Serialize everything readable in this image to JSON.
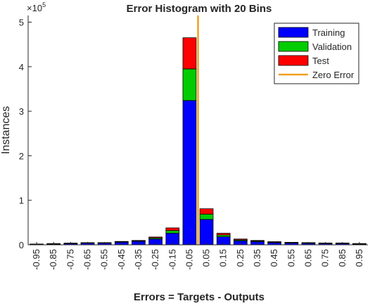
{
  "chart_data": {
    "type": "bar",
    "title": "Error Histogram with 20 Bins",
    "xlabel": "Errors = Targets - Outputs",
    "ylabel": "Instances",
    "y_exponent_label": "×10",
    "y_exponent_power": "5",
    "y_multiplier": 100000,
    "ylim": [
      0,
      5.15
    ],
    "yticks": [
      "0",
      "1",
      "2",
      "3",
      "4",
      "5"
    ],
    "categories": [
      "-0.95",
      "-0.85",
      "-0.75",
      "-0.65",
      "-0.55",
      "-0.45",
      "-0.35",
      "-0.25",
      "-0.15",
      "-0.05",
      "0.05",
      "0.15",
      "0.25",
      "0.35",
      "0.45",
      "0.55",
      "0.65",
      "0.75",
      "0.85",
      "0.95"
    ],
    "stacked": true,
    "series": [
      {
        "name": "Training",
        "color": "#0000ff",
        "values": [
          0.01,
          0.02,
          0.03,
          0.04,
          0.04,
          0.06,
          0.08,
          0.13,
          0.26,
          3.24,
          0.57,
          0.18,
          0.09,
          0.07,
          0.05,
          0.04,
          0.035,
          0.03,
          0.03,
          0.02
        ]
      },
      {
        "name": "Validation",
        "color": "#00cc00",
        "values": [
          0.005,
          0.005,
          0.005,
          0.005,
          0.005,
          0.01,
          0.01,
          0.025,
          0.06,
          0.71,
          0.12,
          0.04,
          0.02,
          0.015,
          0.01,
          0.008,
          0.007,
          0.006,
          0.006,
          0.004
        ]
      },
      {
        "name": "Test",
        "color": "#ff0000",
        "values": [
          0.003,
          0.003,
          0.003,
          0.003,
          0.004,
          0.006,
          0.008,
          0.02,
          0.06,
          0.7,
          0.12,
          0.04,
          0.02,
          0.013,
          0.01,
          0.008,
          0.007,
          0.005,
          0.005,
          0.004
        ]
      }
    ],
    "zero_error": {
      "name": "Zero Error",
      "x": 0.0,
      "color": "#f0a020"
    },
    "legend_placement": "top-right",
    "grid": false
  }
}
